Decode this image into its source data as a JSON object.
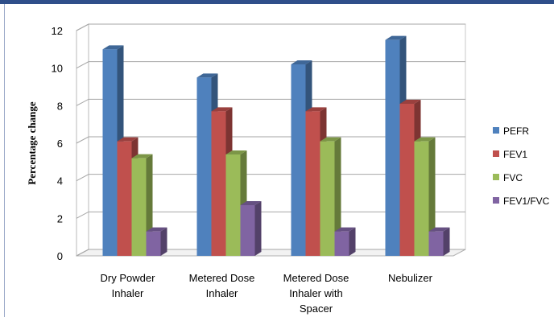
{
  "chart_data": {
    "type": "bar",
    "title": "",
    "xlabel": "",
    "ylabel": "Percentage change",
    "ylim": [
      0,
      12
    ],
    "y_ticks": [
      "0",
      "2",
      "4",
      "6",
      "8",
      "10",
      "12"
    ],
    "grid": true,
    "legend_position": "right",
    "categories": [
      [
        "Dry Powder",
        "Inhaler"
      ],
      [
        "Metered Dose",
        "Inhaler"
      ],
      [
        "Metered Dose",
        "Inhaler with",
        "Spacer"
      ],
      [
        "Nebulizer"
      ]
    ],
    "series": [
      {
        "name": "PEFR",
        "values": [
          11.0,
          9.5,
          10.2,
          11.5
        ]
      },
      {
        "name": "FEV1",
        "values": [
          6.1,
          7.7,
          7.7,
          8.1
        ]
      },
      {
        "name": "FVC",
        "values": [
          5.2,
          5.4,
          6.1,
          6.1
        ]
      },
      {
        "name": "FEV1/FVC",
        "values": [
          1.3,
          2.7,
          1.3,
          1.3
        ]
      }
    ],
    "colors": {
      "PEFR": "#4f81bd",
      "FEV1": "#c0504d",
      "FVC": "#9bbb59",
      "FEV1/FVC": "#8064a2"
    }
  }
}
